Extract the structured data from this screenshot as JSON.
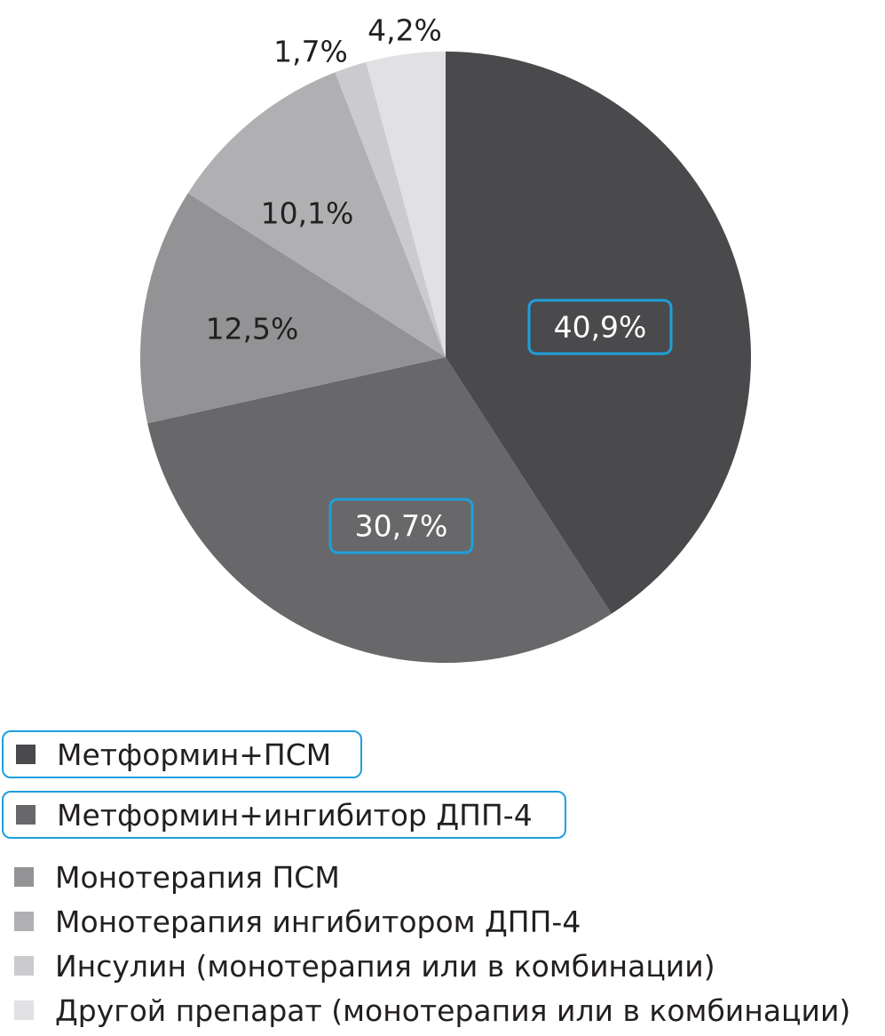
{
  "chart_data": {
    "type": "pie",
    "title": "",
    "start_angle_deg": 0,
    "direction": "clockwise",
    "slices": [
      {
        "label": "Метформин+ПСМ",
        "value": 40.9,
        "value_label": "40,9%",
        "color": "#4a4a4c",
        "label_color": "#ffffff",
        "highlighted": true
      },
      {
        "label": "Метформин+ингибитор ДПП-4",
        "value": 30.7,
        "value_label": "30,7%",
        "color": "#68686a",
        "label_color": "#ffffff",
        "highlighted": true
      },
      {
        "label": "Монотерапия ПСМ",
        "value": 12.5,
        "value_label": "12,5%",
        "color": "#939395",
        "label_color": "#231f20",
        "highlighted": false
      },
      {
        "label": "Монотерапия ингибитором ДПП-4",
        "value": 10.1,
        "value_label": "10,1%",
        "color": "#b0b0b2",
        "label_color": "#231f20",
        "highlighted": false
      },
      {
        "label": "Инсулин (монотерапия или в комбинации)",
        "value": 1.7,
        "value_label": "1,7%",
        "color": "#cbcbcd",
        "label_color": "#231f20",
        "highlighted": false
      },
      {
        "label": "Другой препарат (монотерапия или в комбинации)",
        "value": 4.2,
        "value_label": "4,2%",
        "color": "#e1e1e3",
        "label_color": "#231f20",
        "highlighted": false
      }
    ],
    "highlight_color": "#1ea0dc",
    "legend_position": "bottom-left"
  }
}
